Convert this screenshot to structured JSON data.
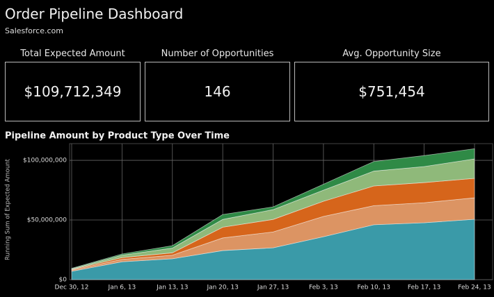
{
  "header": {
    "title": "Order Pipeline Dashboard",
    "subtitle": "Salesforce.com"
  },
  "kpis": [
    {
      "label": "Total Expected Amount",
      "value": "$109,712,349"
    },
    {
      "label": "Number of Opportunities",
      "value": "146"
    },
    {
      "label": "Avg. Opportunity Size",
      "value": "$751,454"
    }
  ],
  "chart_data": {
    "type": "stacked_area",
    "title": "Pipeline Amount by Product Type Over Time",
    "y_label": "Running Sum of Expected Amount",
    "categories": [
      "Dec 30, 12",
      "Jan 6, 13",
      "Jan 13, 13",
      "Jan 20, 13",
      "Jan 27, 13",
      "Feb 3, 13",
      "Feb 10, 13",
      "Feb 17, 13",
      "Feb 24, 13"
    ],
    "series": [
      {
        "color": "#3a9aa8",
        "values": [
          7000000,
          15000000,
          17500000,
          24400000,
          26700000,
          36000000,
          46000000,
          47700000,
          50600000
        ]
      },
      {
        "color": "#dc9463",
        "values": [
          1000000,
          2000000,
          3000000,
          10600000,
          13300000,
          17000000,
          16000000,
          16800000,
          18000000
        ]
      },
      {
        "color": "#d6651b",
        "values": [
          500000,
          1500000,
          2000000,
          9000000,
          10500000,
          12700000,
          16500000,
          16900000,
          16300000
        ]
      },
      {
        "color": "#8fb97a",
        "values": [
          500000,
          2000000,
          4000000,
          6500000,
          8200000,
          9300000,
          12500000,
          13400000,
          16300000
        ]
      },
      {
        "color": "#2f8a46",
        "values": [
          500000,
          1000000,
          2000000,
          4100000,
          2300000,
          5000000,
          8000000,
          9200000,
          8500000
        ]
      }
    ],
    "ylim": [
      0,
      114000000
    ],
    "yticks": [
      {
        "value": 0,
        "label": "$0"
      },
      {
        "value": 50000000,
        "label": "$50,000,000"
      },
      {
        "value": 100000000,
        "label": "$100,000,000"
      }
    ],
    "grid": true
  }
}
